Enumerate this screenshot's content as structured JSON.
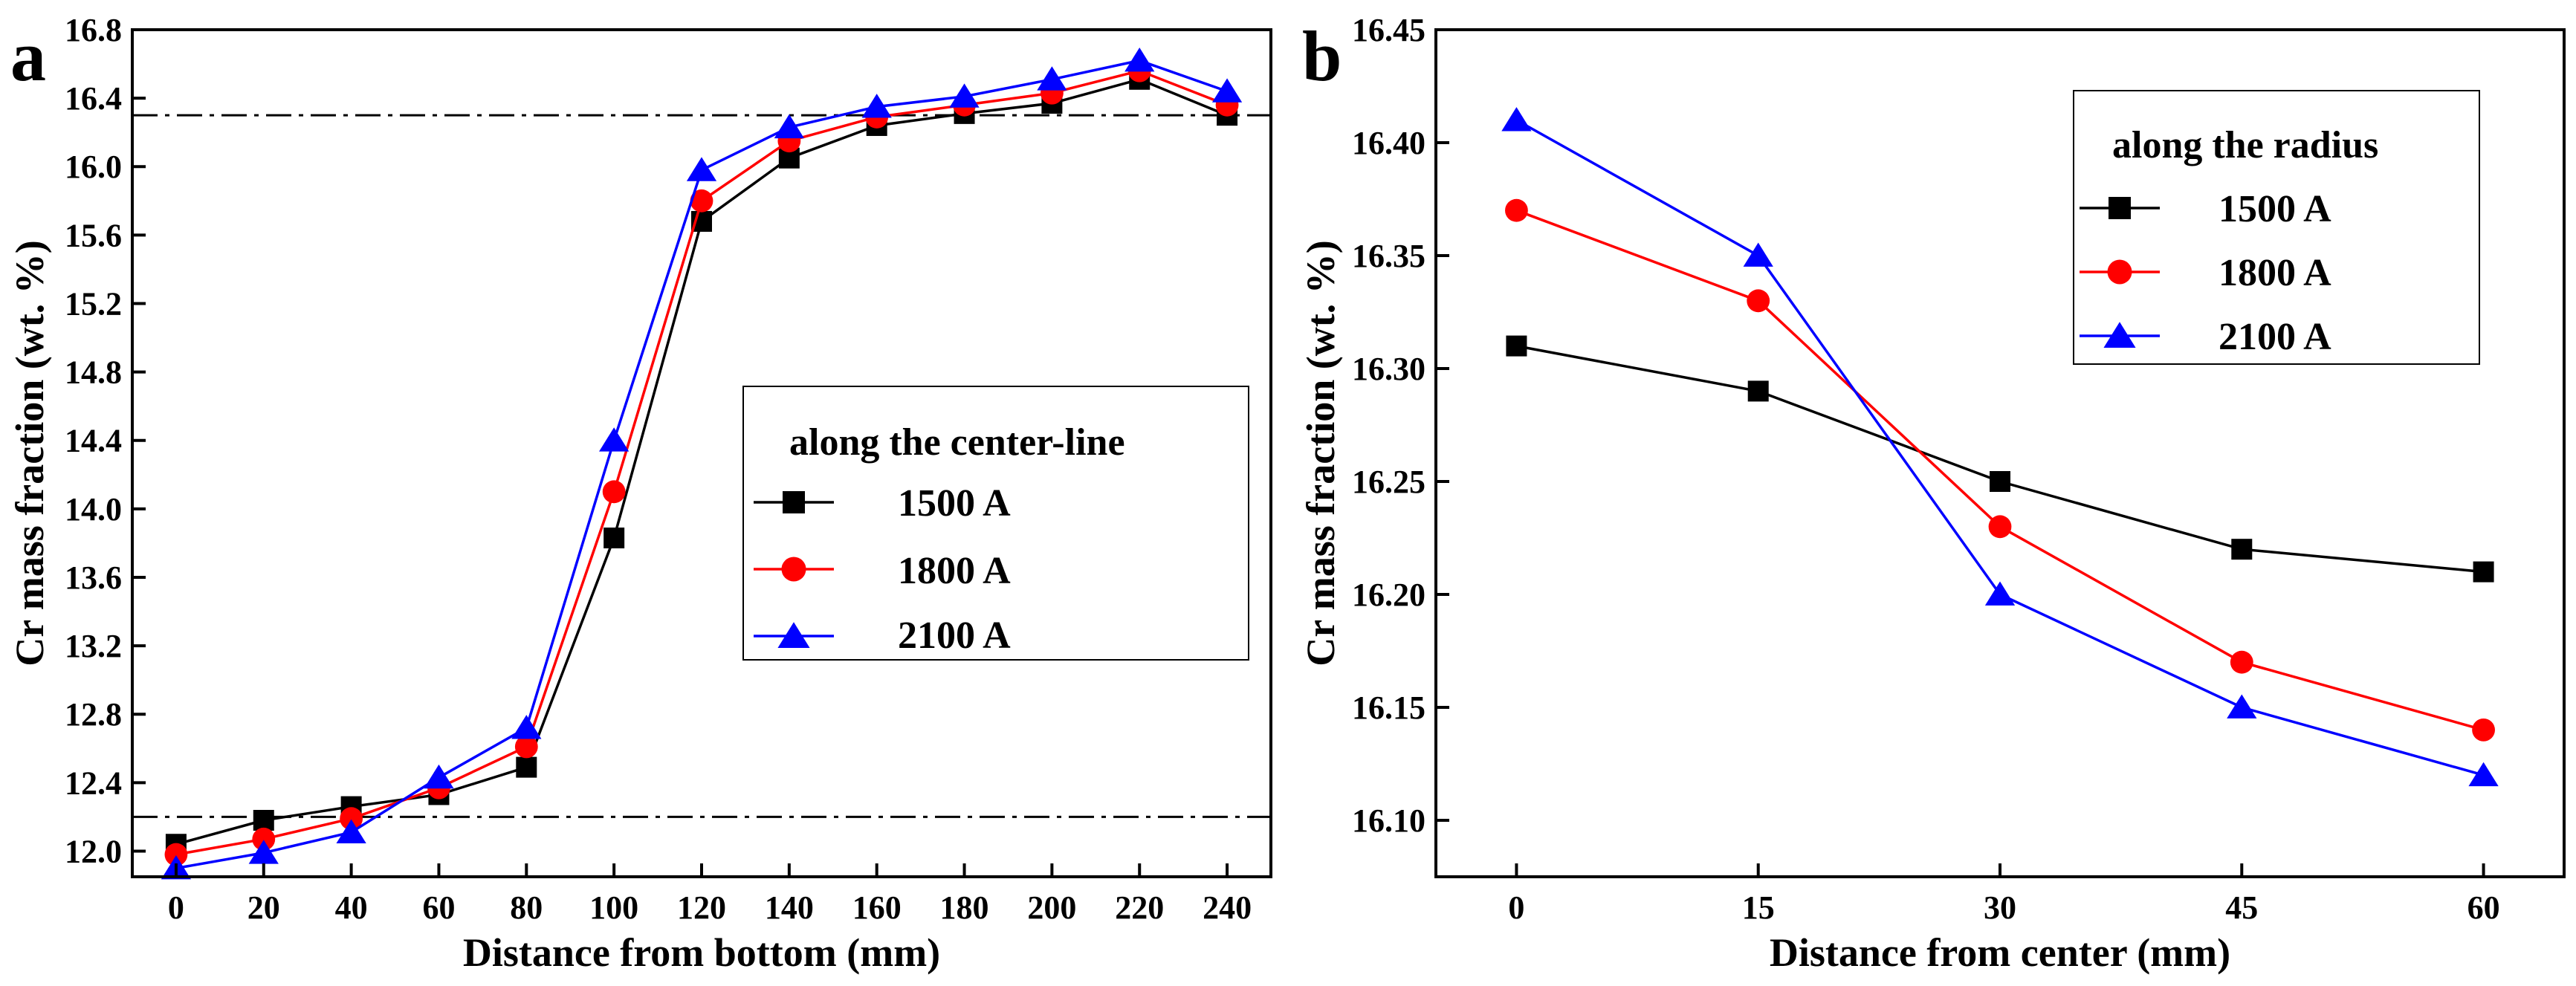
{
  "colors": {
    "s1500": "#000000",
    "s1800": "#ff0000",
    "s2100": "#0000ff",
    "frame": "#000000"
  },
  "chart_data": [
    {
      "type": "line",
      "panel_label": "a",
      "title": "",
      "xlabel": "Distance from bottom (mm)",
      "ylabel": "Cr mass fraction (wt. %)",
      "xlim": [
        -10,
        250
      ],
      "ylim": [
        11.85,
        16.8
      ],
      "xticks": [
        0,
        20,
        40,
        60,
        80,
        100,
        120,
        140,
        160,
        180,
        200,
        220,
        240
      ],
      "yticks": [
        12.0,
        12.4,
        12.8,
        13.2,
        13.6,
        14.0,
        14.4,
        14.8,
        15.2,
        15.6,
        16.0,
        16.4,
        16.8
      ],
      "ytick_decimals": 1,
      "reference_lines": [
        16.3,
        12.2
      ],
      "legend": {
        "title": "along the center-line",
        "position": "center-right"
      },
      "x": [
        0,
        20,
        40,
        60,
        80,
        100,
        120,
        140,
        160,
        180,
        200,
        220,
        240
      ],
      "series": [
        {
          "name": "1500 A",
          "marker": "square",
          "color_key": "s1500",
          "values": [
            12.04,
            12.18,
            12.26,
            12.33,
            12.49,
            13.83,
            15.68,
            16.05,
            16.24,
            16.31,
            16.37,
            16.51,
            16.3
          ]
        },
        {
          "name": "1800 A",
          "marker": "circle",
          "color_key": "s1800",
          "values": [
            11.98,
            12.07,
            12.19,
            12.37,
            12.61,
            14.1,
            15.8,
            16.15,
            16.29,
            16.36,
            16.43,
            16.56,
            16.36
          ]
        },
        {
          "name": "2100 A",
          "marker": "triangle",
          "color_key": "s2100",
          "values": [
            11.9,
            11.99,
            12.11,
            12.43,
            12.72,
            14.4,
            15.98,
            16.23,
            16.35,
            16.41,
            16.51,
            16.62,
            16.44
          ]
        }
      ]
    },
    {
      "type": "line",
      "panel_label": "b",
      "title": "",
      "xlabel": "Distance from center (mm)",
      "ylabel": "Cr mass fraction (wt. %)",
      "xlim": [
        -5,
        65
      ],
      "ylim": [
        16.075,
        16.45
      ],
      "xticks": [
        0,
        15,
        30,
        45,
        60
      ],
      "yticks": [
        16.1,
        16.15,
        16.2,
        16.25,
        16.3,
        16.35,
        16.4,
        16.45
      ],
      "ytick_decimals": 2,
      "reference_lines": [],
      "legend": {
        "title": "along the radius",
        "position": "top-right"
      },
      "x": [
        0,
        15,
        30,
        45,
        60
      ],
      "series": [
        {
          "name": "1500 A",
          "marker": "square",
          "color_key": "s1500",
          "values": [
            16.31,
            16.29,
            16.25,
            16.22,
            16.21
          ]
        },
        {
          "name": "1800 A",
          "marker": "circle",
          "color_key": "s1800",
          "values": [
            16.37,
            16.33,
            16.23,
            16.17,
            16.14
          ]
        },
        {
          "name": "2100 A",
          "marker": "triangle",
          "color_key": "s2100",
          "values": [
            16.41,
            16.35,
            16.2,
            16.15,
            16.12
          ]
        }
      ]
    }
  ]
}
